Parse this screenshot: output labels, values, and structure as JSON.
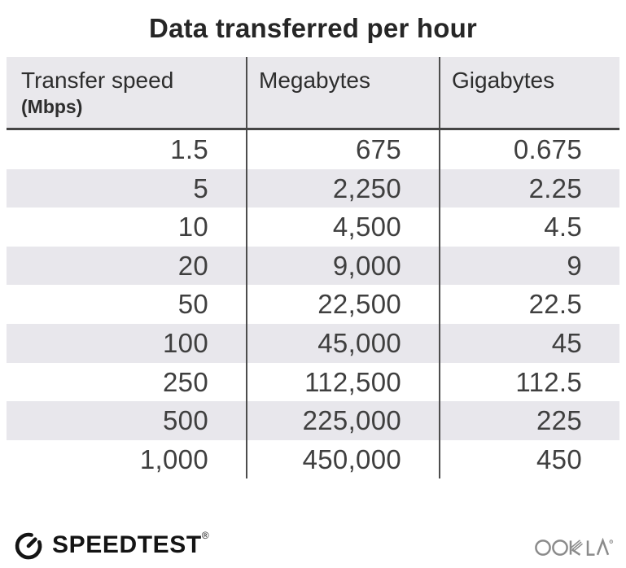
{
  "title": "Data transferred per hour",
  "table": {
    "header": {
      "speed_label": "Transfer speed",
      "speed_unit": "(Mbps)",
      "megabytes_label": "Megabytes",
      "gigabytes_label": "Gigabytes"
    },
    "rows": [
      [
        "1.5",
        "675",
        "0.675"
      ],
      [
        "5",
        "2,250",
        "2.25"
      ],
      [
        "10",
        "4,500",
        "4.5"
      ],
      [
        "20",
        "9,000",
        "9"
      ],
      [
        "50",
        "22,500",
        "22.5"
      ],
      [
        "100",
        "45,000",
        "45"
      ],
      [
        "250",
        "112,500",
        "112.5"
      ],
      [
        "500",
        "225,000",
        "225"
      ],
      [
        "1,000",
        "450,000",
        "450"
      ]
    ]
  },
  "chart_data": {
    "type": "table",
    "title": "Data transferred per hour",
    "columns": [
      "Transfer speed (Mbps)",
      "Megabytes",
      "Gigabytes"
    ],
    "rows": [
      [
        1.5,
        675,
        0.675
      ],
      [
        5,
        2250,
        2.25
      ],
      [
        10,
        4500,
        4.5
      ],
      [
        20,
        9000,
        9
      ],
      [
        50,
        22500,
        22.5
      ],
      [
        100,
        45000,
        45
      ],
      [
        250,
        112500,
        112.5
      ],
      [
        500,
        225000,
        225
      ],
      [
        1000,
        450000,
        450
      ]
    ]
  },
  "footer": {
    "speedtest_label": "SPEEDTEST",
    "speedtest_mark": "®",
    "ookla_label": "OOKLA",
    "ookla_mark": "®"
  },
  "colors": {
    "header_bg": "#e9e8ec",
    "stripe_bg": "#e8e7ec",
    "divider": "#4d4d4d",
    "header_border": "#454545",
    "title_text": "#262626",
    "number_text": "#3f3f3f",
    "speedtest_black": "#141414",
    "ookla_gray": "#8b8b8b"
  }
}
